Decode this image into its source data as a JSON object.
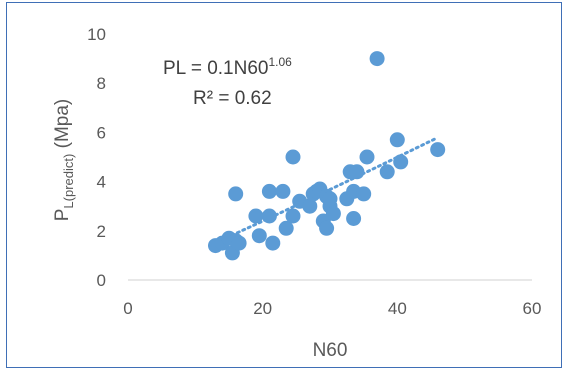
{
  "chart_data": {
    "type": "scatter",
    "xlabel": "N60",
    "ylabel_main": "P",
    "ylabel_sub": "L(predict)",
    "ylabel_unit": " (Mpa)",
    "xlim": [
      0,
      60
    ],
    "ylim": [
      0,
      10
    ],
    "x_ticks": [
      0,
      20,
      40,
      60
    ],
    "y_ticks": [
      0,
      2,
      4,
      6,
      8,
      10
    ],
    "x_tick_labels": [
      "0",
      "20",
      "40",
      "60"
    ],
    "y_tick_labels": [
      "0",
      "2",
      "4",
      "6",
      "8",
      "10"
    ],
    "grid": false,
    "trendline": {
      "type": "power",
      "coefficient": 0.1,
      "exponent": 1.06,
      "x_range": [
        13,
        46
      ],
      "style": "dotted"
    },
    "annotations": {
      "equation_prefix": "PL = 0.1N60",
      "equation_exponent": "1.06",
      "r_squared": "R² = 0.62"
    },
    "colors": {
      "marker": "#5b9bd5",
      "trendline": "#5b9bd5",
      "axis": "#d9d9d9",
      "frame": "#3f6fb6"
    },
    "points": [
      [
        13,
        1.4
      ],
      [
        14,
        1.5
      ],
      [
        15,
        1.7
      ],
      [
        15.5,
        1.1
      ],
      [
        16,
        1.6
      ],
      [
        16.5,
        1.5
      ],
      [
        16,
        3.5
      ],
      [
        19,
        2.6
      ],
      [
        19.5,
        1.8
      ],
      [
        21,
        2.6
      ],
      [
        21,
        3.6
      ],
      [
        21.5,
        1.5
      ],
      [
        23,
        3.6
      ],
      [
        23.5,
        2.1
      ],
      [
        24.5,
        2.6
      ],
      [
        24.5,
        5.0
      ],
      [
        25.5,
        3.2
      ],
      [
        27,
        3.0
      ],
      [
        27.5,
        3.5
      ],
      [
        28,
        3.6
      ],
      [
        28.5,
        3.7
      ],
      [
        29,
        2.4
      ],
      [
        29.5,
        3.4
      ],
      [
        29.5,
        2.1
      ],
      [
        30,
        3.0
      ],
      [
        30,
        3.3
      ],
      [
        30.5,
        2.7
      ],
      [
        32.5,
        3.3
      ],
      [
        33,
        4.4
      ],
      [
        33.5,
        2.5
      ],
      [
        33.5,
        3.6
      ],
      [
        34,
        4.4
      ],
      [
        35,
        3.5
      ],
      [
        35.5,
        5.0
      ],
      [
        37,
        9.0
      ],
      [
        38.5,
        4.4
      ],
      [
        40,
        5.7
      ],
      [
        40.5,
        4.8
      ],
      [
        46,
        5.3
      ]
    ]
  }
}
